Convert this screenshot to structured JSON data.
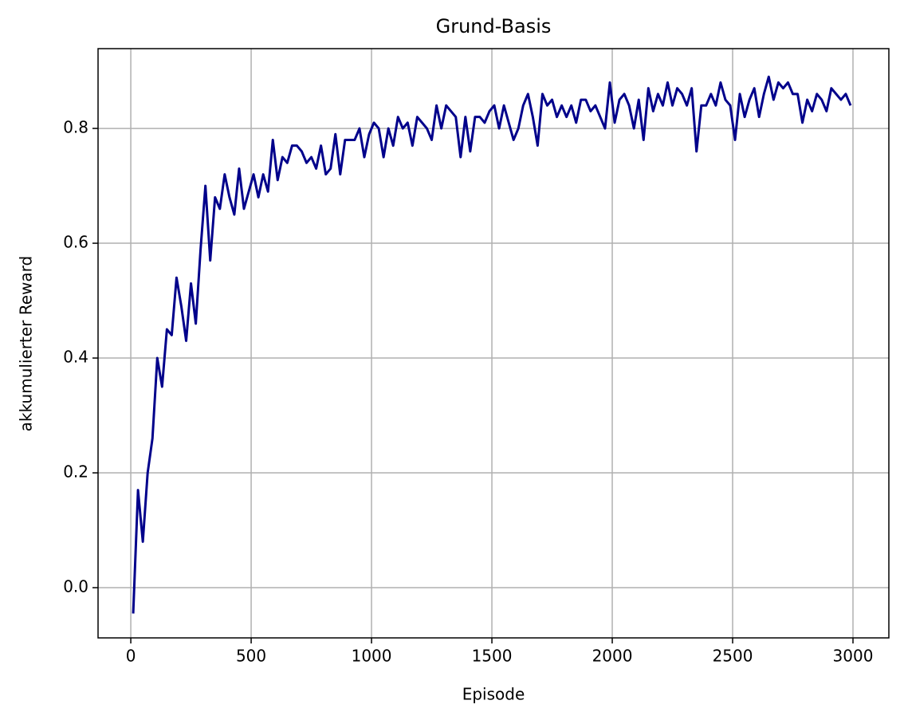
{
  "chart_data": {
    "type": "line",
    "title": "Grund-Basis",
    "x_label": "Episode",
    "y_label": "akkumulierter Reward",
    "x": [
      10,
      30,
      50,
      70,
      90,
      110,
      130,
      150,
      170,
      190,
      210,
      230,
      250,
      270,
      290,
      310,
      330,
      350,
      370,
      390,
      410,
      430,
      450,
      470,
      490,
      510,
      530,
      550,
      570,
      590,
      610,
      630,
      650,
      670,
      690,
      710,
      730,
      750,
      770,
      790,
      810,
      830,
      850,
      870,
      890,
      910,
      930,
      950,
      970,
      990,
      1010,
      1030,
      1050,
      1070,
      1090,
      1110,
      1130,
      1150,
      1170,
      1190,
      1210,
      1230,
      1250,
      1270,
      1290,
      1310,
      1330,
      1350,
      1370,
      1390,
      1410,
      1430,
      1450,
      1470,
      1490,
      1510,
      1530,
      1550,
      1570,
      1590,
      1610,
      1630,
      1650,
      1670,
      1690,
      1710,
      1730,
      1750,
      1770,
      1790,
      1810,
      1830,
      1850,
      1870,
      1890,
      1910,
      1930,
      1950,
      1970,
      1990,
      2010,
      2030,
      2050,
      2070,
      2090,
      2110,
      2130,
      2150,
      2170,
      2190,
      2210,
      2230,
      2250,
      2270,
      2290,
      2310,
      2330,
      2350,
      2370,
      2390,
      2410,
      2430,
      2450,
      2470,
      2490,
      2510,
      2530,
      2550,
      2570,
      2590,
      2610,
      2630,
      2650,
      2670,
      2690,
      2710,
      2730,
      2750,
      2770,
      2790,
      2810,
      2830,
      2850,
      2870,
      2890,
      2910,
      2930,
      2950,
      2970,
      2990
    ],
    "series": [
      {
        "name": "Reward",
        "color": "#00008b",
        "values": [
          -0.045,
          0.17,
          0.08,
          0.2,
          0.26,
          0.4,
          0.35,
          0.45,
          0.44,
          0.54,
          0.49,
          0.43,
          0.53,
          0.46,
          0.59,
          0.7,
          0.57,
          0.68,
          0.66,
          0.72,
          0.68,
          0.65,
          0.73,
          0.66,
          0.69,
          0.72,
          0.68,
          0.72,
          0.69,
          0.78,
          0.71,
          0.75,
          0.74,
          0.77,
          0.77,
          0.76,
          0.74,
          0.75,
          0.73,
          0.77,
          0.72,
          0.73,
          0.79,
          0.72,
          0.78,
          0.78,
          0.78,
          0.8,
          0.75,
          0.79,
          0.81,
          0.8,
          0.75,
          0.8,
          0.77,
          0.82,
          0.8,
          0.81,
          0.77,
          0.82,
          0.81,
          0.8,
          0.78,
          0.84,
          0.8,
          0.84,
          0.83,
          0.82,
          0.75,
          0.82,
          0.76,
          0.82,
          0.82,
          0.81,
          0.83,
          0.84,
          0.8,
          0.84,
          0.81,
          0.78,
          0.8,
          0.84,
          0.86,
          0.82,
          0.77,
          0.86,
          0.84,
          0.85,
          0.82,
          0.84,
          0.82,
          0.84,
          0.81,
          0.85,
          0.85,
          0.83,
          0.84,
          0.82,
          0.8,
          0.88,
          0.81,
          0.85,
          0.86,
          0.84,
          0.8,
          0.85,
          0.78,
          0.87,
          0.83,
          0.86,
          0.84,
          0.88,
          0.84,
          0.87,
          0.86,
          0.84,
          0.87,
          0.76,
          0.84,
          0.84,
          0.86,
          0.84,
          0.88,
          0.85,
          0.84,
          0.78,
          0.86,
          0.82,
          0.85,
          0.87,
          0.82,
          0.86,
          0.89,
          0.85,
          0.88,
          0.87,
          0.88,
          0.86,
          0.86,
          0.81,
          0.85,
          0.83,
          0.86,
          0.85,
          0.83,
          0.87,
          0.86,
          0.85,
          0.86,
          0.84
        ]
      }
    ],
    "xlim": [
      -136,
      3149
    ],
    "ylim": [
      -0.0875,
      0.939
    ],
    "xticks": [
      0,
      500,
      1000,
      1500,
      2000,
      2500,
      3000
    ],
    "yticks": [
      {
        "value": 0,
        "label": "0.0"
      },
      0.2,
      0.4,
      0.6,
      0.8
    ],
    "grid": true
  }
}
